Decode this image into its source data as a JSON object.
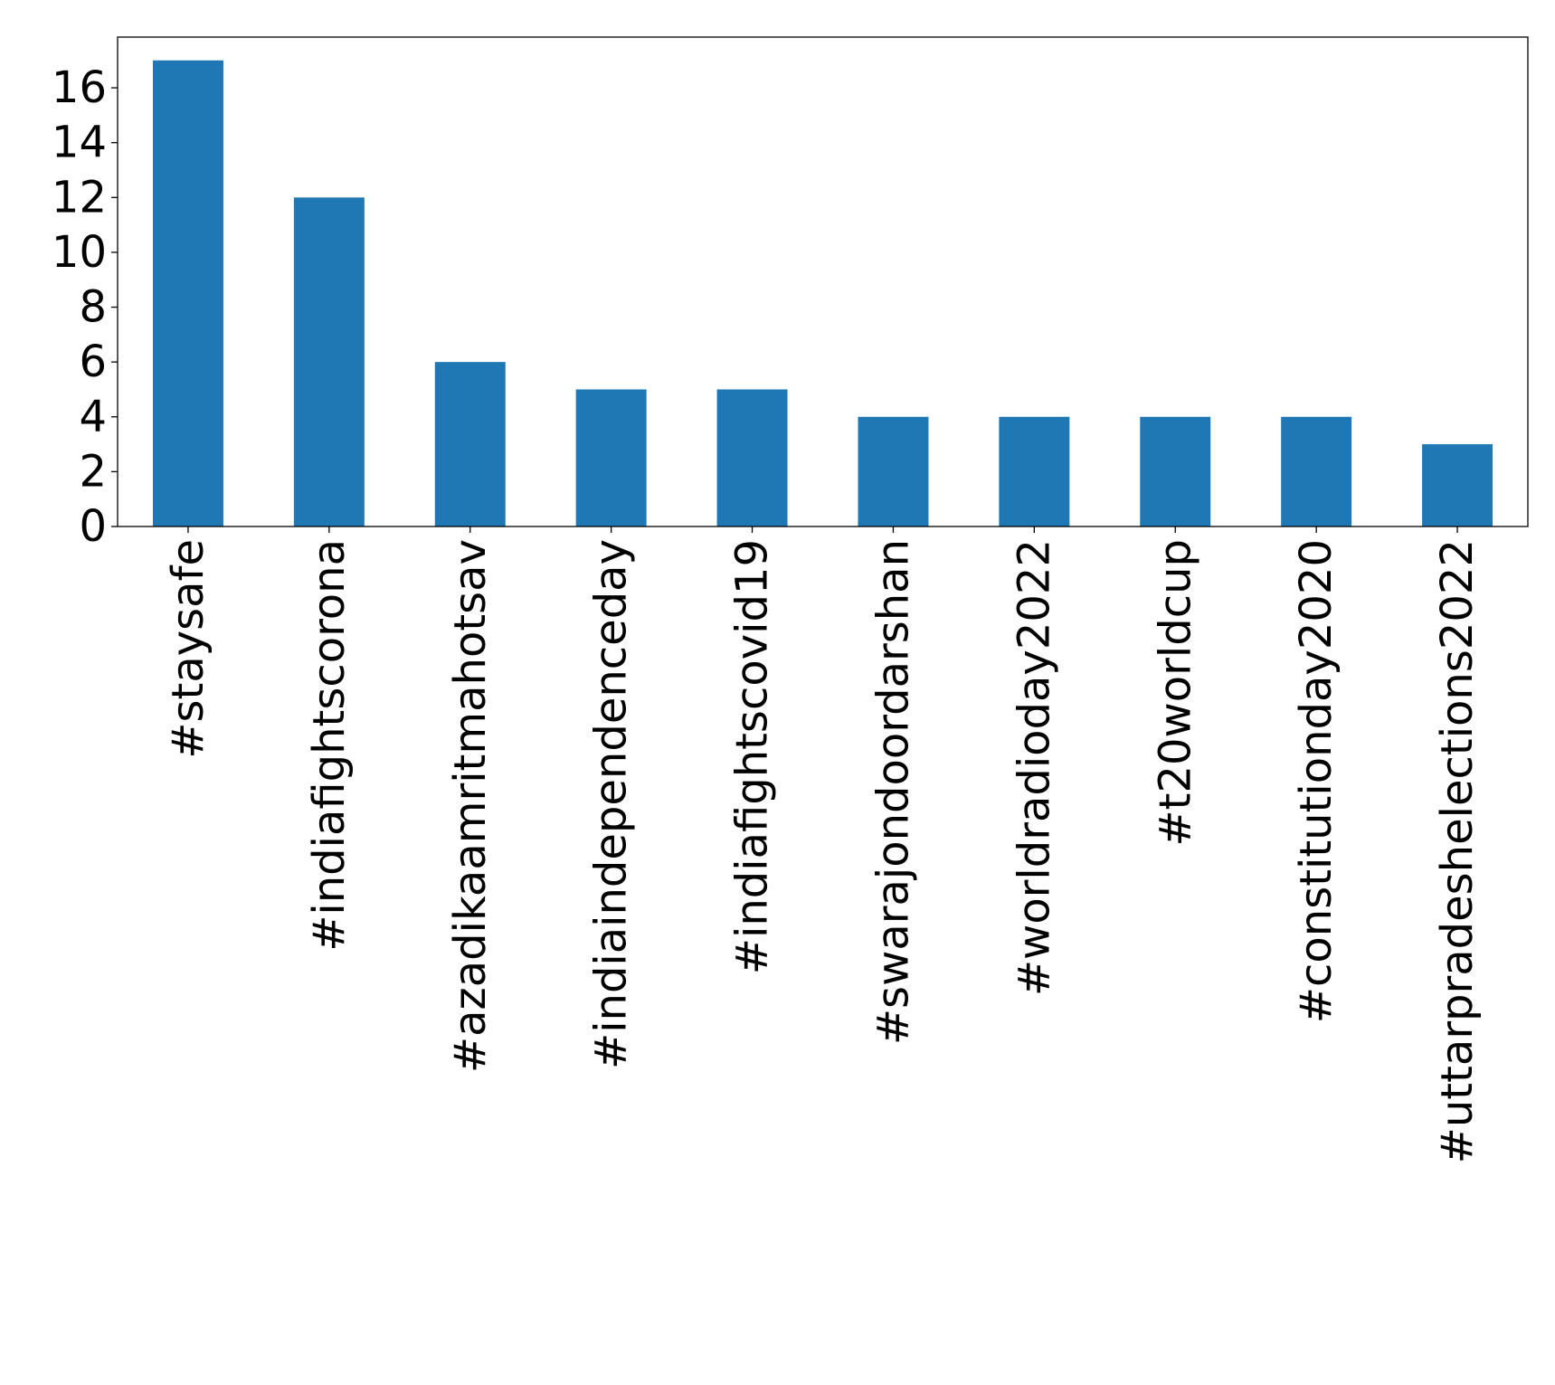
{
  "chart_data": {
    "type": "bar",
    "title": "",
    "xlabel": "",
    "ylabel": "",
    "categories": [
      "#staysafe",
      "#indiafightscorona",
      "#azadikaamritmahotsav",
      "#indiaindependenceday",
      "#indiafightscovid19",
      "#swarajondoordarshan",
      "#worldradioday2022",
      "#t20worldcup",
      "#constitutionday2020",
      "#uttarpradeshelections2022"
    ],
    "values": [
      17,
      12,
      6,
      5,
      5,
      4,
      4,
      4,
      4,
      3
    ],
    "ylim": [
      0,
      17.85
    ],
    "yticks": [
      0,
      2,
      4,
      6,
      8,
      10,
      12,
      14,
      16
    ],
    "grid": false,
    "legend": "none",
    "bar_color": "#1f77b4"
  }
}
